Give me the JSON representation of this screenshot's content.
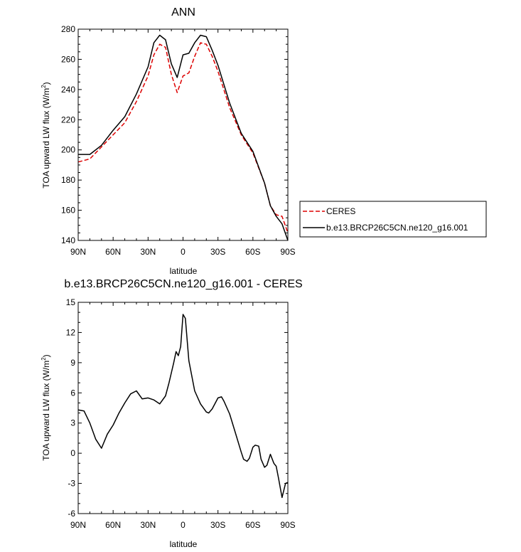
{
  "chart_data": [
    {
      "type": "line",
      "title": "ANN",
      "xlabel": "latitude",
      "ylabel": "TOA upward LW flux (W/m",
      "ylabel_sup": "2",
      "ylabel_suffix": ")",
      "xlim": [
        90,
        -90
      ],
      "ylim": [
        140,
        280
      ],
      "x_ticks": [
        90,
        60,
        30,
        0,
        -30,
        -60,
        -90
      ],
      "x_tick_labels": [
        "90N",
        "60N",
        "30N",
        "0",
        "30S",
        "60S",
        "90S"
      ],
      "y_ticks": [
        140,
        160,
        180,
        200,
        220,
        240,
        260,
        280
      ],
      "y_tick_labels": [
        "140",
        "160",
        "180",
        "200",
        "220",
        "240",
        "260",
        "280"
      ],
      "legend_position": "right",
      "series": [
        {
          "name": "CERES",
          "color": "#dd0000",
          "style": "dashed",
          "x": [
            90,
            80,
            70,
            60,
            50,
            40,
            30,
            25,
            20,
            15,
            10,
            5,
            0,
            -5,
            -10,
            -15,
            -20,
            -25,
            -30,
            -40,
            -50,
            -60,
            -70,
            -75,
            -80,
            -85,
            -90
          ],
          "y": [
            192,
            194,
            202,
            210,
            218,
            232,
            249,
            263,
            270,
            268,
            250,
            238,
            249,
            251,
            262,
            271,
            270,
            262,
            252,
            228,
            210,
            198,
            178,
            163,
            157,
            156,
            145
          ]
        },
        {
          "name": "b.e13.BRCP26C5CN.ne120_g16.001",
          "color": "#000000",
          "style": "solid",
          "x": [
            90,
            80,
            70,
            60,
            50,
            40,
            30,
            25,
            20,
            15,
            10,
            5,
            0,
            -5,
            -10,
            -15,
            -20,
            -25,
            -30,
            -40,
            -50,
            -60,
            -70,
            -75,
            -80,
            -85,
            -90
          ],
          "y": [
            197,
            197,
            203,
            213,
            222,
            237,
            255,
            271,
            276,
            273,
            257,
            248,
            263,
            264,
            271,
            276,
            275,
            266,
            256,
            231,
            211,
            199,
            178,
            163,
            156,
            151,
            140
          ]
        }
      ]
    },
    {
      "type": "line",
      "title": "b.e13.BRCP26C5CN.ne120_g16.001 - CERES",
      "xlabel": "latitude",
      "ylabel": "TOA upward LW flux (W/m",
      "ylabel_sup": "2",
      "ylabel_suffix": ")",
      "xlim": [
        90,
        -90
      ],
      "ylim": [
        -6,
        15
      ],
      "x_ticks": [
        90,
        60,
        30,
        0,
        -30,
        -60,
        -90
      ],
      "x_tick_labels": [
        "90N",
        "60N",
        "30N",
        "0",
        "30S",
        "60S",
        "90S"
      ],
      "y_ticks": [
        -6,
        -3,
        0,
        3,
        6,
        9,
        12,
        15
      ],
      "y_tick_labels": [
        "-6",
        "-3",
        "0",
        "3",
        "6",
        "9",
        "12",
        "15"
      ],
      "series": [
        {
          "color": "#000000",
          "style": "solid",
          "x": [
            90,
            85,
            80,
            75,
            70,
            65,
            60,
            55,
            50,
            45,
            40,
            35,
            30,
            25,
            20,
            15,
            12,
            10,
            8,
            6,
            4,
            2,
            0,
            -2,
            -5,
            -10,
            -15,
            -20,
            -22,
            -25,
            -30,
            -33,
            -35,
            -40,
            -45,
            -50,
            -52,
            -55,
            -57,
            -60,
            -62,
            -65,
            -67,
            -70,
            -72,
            -75,
            -78,
            -80,
            -82,
            -85,
            -88,
            -90
          ],
          "y": [
            4.3,
            4.2,
            3.0,
            1.4,
            0.5,
            1.9,
            2.8,
            4.0,
            5.0,
            5.9,
            6.2,
            5.4,
            5.5,
            5.3,
            4.9,
            5.7,
            7.0,
            8.0,
            9.0,
            10.1,
            9.7,
            10.6,
            13.8,
            13.4,
            9.2,
            6.2,
            4.9,
            4.1,
            4.0,
            4.4,
            5.5,
            5.6,
            5.2,
            3.9,
            2.0,
            0.1,
            -0.6,
            -0.8,
            -0.5,
            0.6,
            0.8,
            0.7,
            -0.6,
            -1.4,
            -1.2,
            -0.1,
            -1.0,
            -1.3,
            -2.5,
            -4.4,
            -3.0,
            -2.9
          ]
        }
      ]
    }
  ]
}
